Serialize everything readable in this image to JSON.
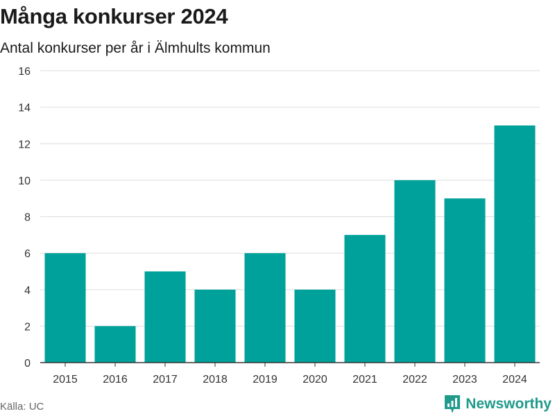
{
  "chart_data": {
    "type": "bar",
    "title": "Många konkurser 2024",
    "subtitle": "Antal konkurser per år i Älmhults kommun",
    "categories": [
      "2015",
      "2016",
      "2017",
      "2018",
      "2019",
      "2020",
      "2021",
      "2022",
      "2023",
      "2024"
    ],
    "values": [
      6,
      2,
      5,
      4,
      6,
      4,
      7,
      10,
      9,
      13
    ],
    "ylim": [
      0,
      16
    ],
    "yticks": [
      0,
      2,
      4,
      6,
      8,
      10,
      12,
      14,
      16
    ],
    "grid": true,
    "bar_color": "#00a19a",
    "gridline_color": "#dddddd",
    "axis_color": "#333333"
  },
  "footer": {
    "source": "Källa: UC",
    "brand_name": "Newsworthy",
    "brand_color": "#1f9a8b",
    "brand_icon": "bar-chart-icon"
  }
}
